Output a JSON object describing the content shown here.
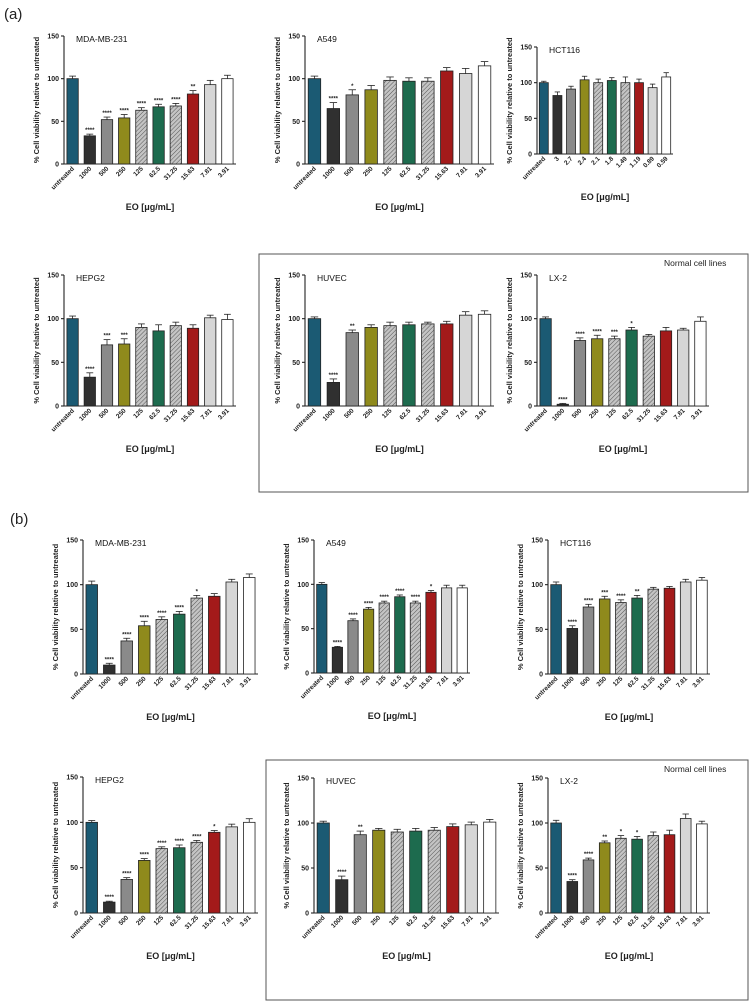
{
  "figure": {
    "panel_a_label": "(a)",
    "panel_b_label": "(b)",
    "normal_cells_label": "Normal cell lines",
    "ylabel": "% Cell viability relative to untreated",
    "xlabel": "EO [μg/mL]"
  },
  "colors": {
    "palette": [
      "#1b5a73",
      "#303030",
      "#8a8a8a",
      "#8f8a1c",
      "#a8a8a8",
      "#1d6b4e",
      "#b8b8b8",
      "#a31a1a",
      "#d6d6d6",
      "#ffffff"
    ],
    "hatched_indices": [
      4,
      6
    ]
  },
  "chart_data": [
    {
      "type": "bar",
      "id": "a-mda",
      "title": "MDA-MB-231",
      "ylim": [
        0,
        150
      ],
      "yticks": [
        0,
        50,
        100,
        150
      ],
      "categories": [
        "untreated",
        "1000",
        "500",
        "250",
        "125",
        "62.5",
        "31.25",
        "15.63",
        "7.81",
        "3.91"
      ],
      "values": [
        100,
        33,
        52,
        54,
        63,
        67,
        68,
        82,
        93,
        100
      ],
      "errors": [
        3,
        2,
        3,
        4,
        3,
        3,
        3,
        4,
        5,
        4
      ],
      "significance": [
        "",
        "****",
        "****",
        "****",
        "****",
        "****",
        "****",
        "**",
        "",
        ""
      ],
      "xlabel": "EO [μg/mL]",
      "ylabel": "% Cell viability relative to untreated"
    },
    {
      "type": "bar",
      "id": "a-a549",
      "title": "A549",
      "ylim": [
        0,
        150
      ],
      "yticks": [
        0,
        50,
        100,
        150
      ],
      "categories": [
        "untreated",
        "1000",
        "500",
        "250",
        "125",
        "62.5",
        "31.25",
        "15.63",
        "7.81",
        "3.91"
      ],
      "values": [
        100,
        65,
        81,
        87,
        98,
        97,
        97,
        109,
        106,
        115
      ],
      "errors": [
        3,
        7,
        6,
        5,
        4,
        4,
        4,
        4,
        6,
        5
      ],
      "significance": [
        "",
        "****",
        "*",
        "",
        "",
        "",
        "",
        "",
        "",
        ""
      ],
      "xlabel": "EO [μg/mL]",
      "ylabel": "% Cell viability relative to untreated"
    },
    {
      "type": "bar",
      "id": "a-hct116",
      "title": "HCT116",
      "ylim": [
        0,
        150
      ],
      "yticks": [
        0,
        50,
        100,
        150
      ],
      "categories": [
        "untreated",
        "3",
        "2.7",
        "2.4",
        "2.1",
        "1.8",
        "1.49",
        "1.19",
        "0.89",
        "0.59"
      ],
      "values": [
        100,
        82,
        91,
        104,
        100,
        103,
        100,
        100,
        93,
        108
      ],
      "errors": [
        2,
        5,
        4,
        5,
        5,
        4,
        8,
        5,
        5,
        6
      ],
      "significance": [
        "",
        "",
        "",
        "",
        "",
        "",
        "",
        "",
        "",
        ""
      ],
      "xlabel": "EO [μg/mL]",
      "ylabel": "% Cell viability relative to untreated"
    },
    {
      "type": "bar",
      "id": "a-hepg2",
      "title": "HEPG2",
      "ylim": [
        0,
        150
      ],
      "yticks": [
        0,
        50,
        100,
        150
      ],
      "categories": [
        "untreated",
        "1000",
        "500",
        "250",
        "125",
        "62.5",
        "31.25",
        "15.63",
        "7.81",
        "3.91"
      ],
      "values": [
        100,
        33,
        70,
        71,
        90,
        86,
        92,
        89,
        101,
        99
      ],
      "errors": [
        3,
        5,
        6,
        6,
        4,
        7,
        4,
        4,
        3,
        6
      ],
      "significance": [
        "",
        "****",
        "***",
        "***",
        "",
        "",
        "",
        "",
        "",
        ""
      ],
      "xlabel": "EO [μg/mL]",
      "ylabel": "% Cell viability relative to untreated"
    },
    {
      "type": "bar",
      "id": "a-huvec",
      "title": "HUVEC",
      "ylim": [
        0,
        150
      ],
      "yticks": [
        0,
        50,
        100,
        150
      ],
      "categories": [
        "untreated",
        "1000",
        "500",
        "250",
        "125",
        "62.5",
        "31.25",
        "15.63",
        "7.81",
        "3.91"
      ],
      "values": [
        100,
        27,
        84,
        90,
        92,
        93,
        94,
        94,
        104,
        105
      ],
      "errors": [
        2,
        4,
        3,
        3,
        4,
        3,
        2,
        3,
        4,
        4
      ],
      "significance": [
        "",
        "****",
        "**",
        "",
        "",
        "",
        "",
        "",
        "",
        ""
      ],
      "xlabel": "EO [μg/mL]",
      "ylabel": "% Cell viability relative to untreated"
    },
    {
      "type": "bar",
      "id": "a-lx2",
      "title": "LX-2",
      "ylim": [
        0,
        150
      ],
      "yticks": [
        0,
        50,
        100,
        150
      ],
      "categories": [
        "untreated",
        "1000",
        "500",
        "250",
        "125",
        "62.5",
        "31.25",
        "15.63",
        "7.81",
        "3.91"
      ],
      "values": [
        100,
        2,
        75,
        77,
        77,
        87,
        80,
        86,
        87,
        97
      ],
      "errors": [
        2,
        1,
        3,
        4,
        3,
        3,
        2,
        4,
        2,
        5
      ],
      "significance": [
        "",
        "****",
        "****",
        "****",
        "***",
        "*",
        "",
        "",
        "",
        ""
      ],
      "xlabel": "EO [μg/mL]",
      "ylabel": "% Cell viability relative to untreated"
    },
    {
      "type": "bar",
      "id": "b-mda",
      "title": "MDA-MB-231",
      "ylim": [
        0,
        150
      ],
      "yticks": [
        0,
        50,
        100,
        150
      ],
      "categories": [
        "untreated",
        "1000",
        "500",
        "250",
        "125",
        "62.5",
        "31.25",
        "15.63",
        "7.81",
        "3.91"
      ],
      "values": [
        100,
        10,
        37,
        54,
        61,
        67,
        85,
        87,
        103,
        108
      ],
      "errors": [
        4,
        2,
        3,
        5,
        3,
        3,
        3,
        3,
        3,
        4
      ],
      "significance": [
        "",
        "****",
        "****",
        "****",
        "****",
        "****",
        "*",
        "",
        "",
        ""
      ],
      "xlabel": "EO [μg/mL]",
      "ylabel": "% Cell viability relative to untreated"
    },
    {
      "type": "bar",
      "id": "b-a549",
      "title": "A549",
      "ylim": [
        0,
        150
      ],
      "yticks": [
        0,
        50,
        100,
        150
      ],
      "categories": [
        "untreated",
        "1000",
        "500",
        "250",
        "125",
        "62.5",
        "31.25",
        "15.63",
        "7.81",
        "3.91"
      ],
      "values": [
        100,
        29,
        59,
        72,
        79,
        86,
        79,
        91,
        96,
        96
      ],
      "errors": [
        2,
        1,
        2,
        2,
        2,
        2,
        2,
        2,
        3,
        3
      ],
      "significance": [
        "",
        "****",
        "****",
        "****",
        "****",
        "****",
        "****",
        "*",
        "",
        ""
      ],
      "xlabel": "EO [μg/mL]",
      "ylabel": "% Cell viability relative to untreated"
    },
    {
      "type": "bar",
      "id": "b-hct116",
      "title": "HCT116",
      "ylim": [
        0,
        150
      ],
      "yticks": [
        0,
        50,
        100,
        150
      ],
      "categories": [
        "untreated",
        "1000",
        "500",
        "250",
        "125",
        "62.5",
        "31.25",
        "15.63",
        "7.81",
        "3.91"
      ],
      "values": [
        100,
        51,
        75,
        84,
        80,
        85,
        95,
        96,
        103,
        105
      ],
      "errors": [
        3,
        3,
        3,
        3,
        3,
        3,
        2,
        2,
        3,
        3
      ],
      "significance": [
        "",
        "****",
        "****",
        "***",
        "****",
        "**",
        "",
        "",
        "",
        ""
      ],
      "xlabel": "EO [μg/mL]",
      "ylabel": "% Cell viability relative to untreated"
    },
    {
      "type": "bar",
      "id": "b-hepg2",
      "title": "HEPG2",
      "ylim": [
        0,
        150
      ],
      "yticks": [
        0,
        50,
        100,
        150
      ],
      "categories": [
        "untreated",
        "1000",
        "500",
        "250",
        "125",
        "62.5",
        "31.25",
        "15.63",
        "7.81",
        "3.91"
      ],
      "values": [
        100,
        12,
        37,
        58,
        71,
        72,
        78,
        89,
        95,
        100
      ],
      "errors": [
        2,
        1,
        2,
        2,
        2,
        3,
        2,
        2,
        3,
        4
      ],
      "significance": [
        "",
        "****",
        "****",
        "****",
        "****",
        "****",
        "****",
        "*",
        "",
        ""
      ],
      "xlabel": "EO [μg/mL]",
      "ylabel": "% Cell viability relative to untreated"
    },
    {
      "type": "bar",
      "id": "b-huvec",
      "title": "HUVEC",
      "ylim": [
        0,
        150
      ],
      "yticks": [
        0,
        50,
        100,
        150
      ],
      "categories": [
        "untreated",
        "1000",
        "500",
        "250",
        "125",
        "62.5",
        "31.25",
        "15.63",
        "7.81",
        "3.91"
      ],
      "values": [
        100,
        37,
        87,
        92,
        90,
        91,
        92,
        96,
        98,
        101
      ],
      "errors": [
        2,
        4,
        4,
        2,
        3,
        3,
        3,
        3,
        3,
        3
      ],
      "significance": [
        "",
        "****",
        "**",
        "",
        "",
        "",
        "",
        "",
        "",
        ""
      ],
      "xlabel": "EO [μg/mL]",
      "ylabel": "% Cell viability relative to untreated"
    },
    {
      "type": "bar",
      "id": "b-lx2",
      "title": "LX-2",
      "ylim": [
        0,
        150
      ],
      "yticks": [
        0,
        50,
        100,
        150
      ],
      "categories": [
        "untreated",
        "1000",
        "500",
        "250",
        "125",
        "62.5",
        "31.25",
        "15.63",
        "7.81",
        "3.91"
      ],
      "values": [
        100,
        35,
        59,
        78,
        83,
        82,
        86,
        87,
        105,
        99
      ],
      "errors": [
        3,
        2,
        2,
        2,
        3,
        3,
        4,
        5,
        5,
        3
      ],
      "significance": [
        "",
        "****",
        "****",
        "**",
        "*",
        "*",
        "",
        "",
        "",
        ""
      ],
      "xlabel": "EO [μg/mL]",
      "ylabel": "% Cell viability relative to untreated"
    }
  ]
}
